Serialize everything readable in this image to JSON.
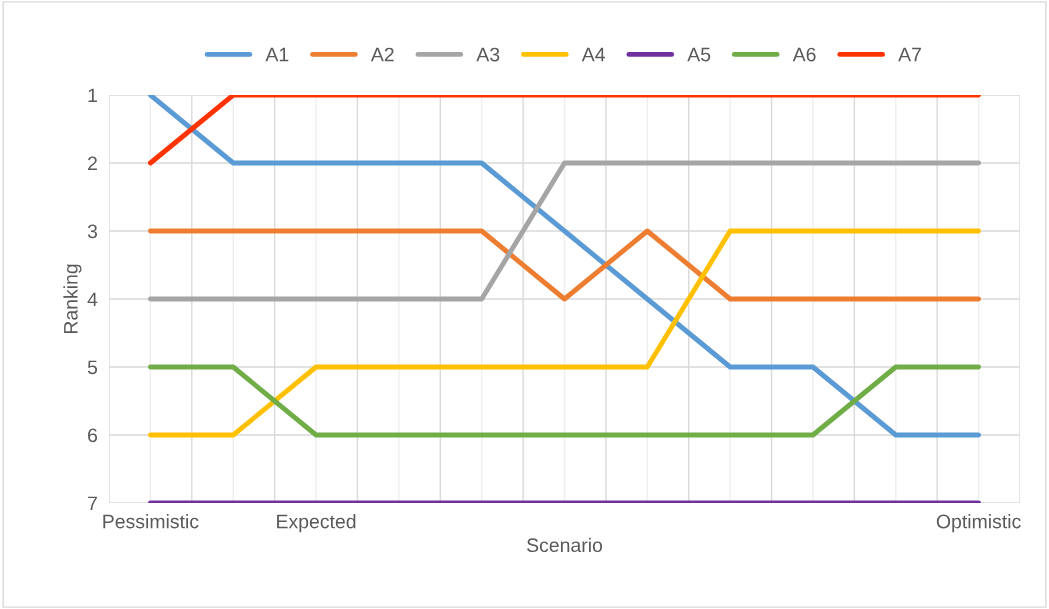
{
  "chart_data": {
    "type": "line",
    "xlabel": "Scenario",
    "ylabel": "Ranking",
    "categories": [
      "Pessimistic",
      null,
      "Expected",
      null,
      null,
      null,
      null,
      null,
      null,
      null,
      "Optimistic"
    ],
    "series": [
      {
        "name": "A1",
        "color": "#5b9bd5",
        "values": [
          1,
          2,
          2,
          2,
          2,
          3,
          4,
          5,
          5,
          6,
          6
        ]
      },
      {
        "name": "A2",
        "color": "#ed7d31",
        "values": [
          3,
          3,
          3,
          3,
          3,
          4,
          3,
          4,
          4,
          4,
          4
        ]
      },
      {
        "name": "A3",
        "color": "#a5a5a5",
        "values": [
          4,
          4,
          4,
          4,
          4,
          2,
          2,
          2,
          2,
          2,
          2
        ]
      },
      {
        "name": "A4",
        "color": "#ffc000",
        "values": [
          6,
          6,
          5,
          5,
          5,
          5,
          5,
          3,
          3,
          3,
          3
        ]
      },
      {
        "name": "A5",
        "color": "#7030a0",
        "values": [
          7,
          7,
          7,
          7,
          7,
          7,
          7,
          7,
          7,
          7,
          7
        ]
      },
      {
        "name": "A6",
        "color": "#70ad47",
        "values": [
          5,
          5,
          6,
          6,
          6,
          6,
          6,
          6,
          6,
          5,
          5
        ]
      },
      {
        "name": "A7",
        "color": "#ff3300",
        "values": [
          2,
          1,
          1,
          1,
          1,
          1,
          1,
          1,
          1,
          1,
          1
        ]
      }
    ],
    "ylim": [
      7,
      1
    ],
    "yticks": [
      1,
      2,
      3,
      4,
      5,
      6,
      7
    ],
    "grid": true,
    "legend": "top",
    "marker": "none",
    "line_style": "solid"
  }
}
